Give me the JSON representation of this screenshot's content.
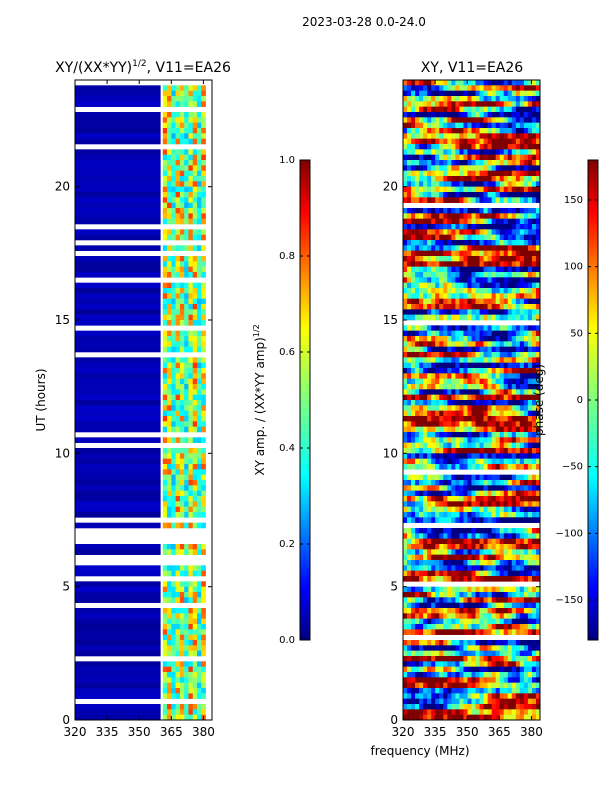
{
  "suptitle": "2023-03-28 0.0-24.0",
  "colors": {
    "jet": [
      "#00007f",
      "#0000ff",
      "#007fff",
      "#00ffff",
      "#7fff7f",
      "#ffff00",
      "#ff7f00",
      "#ff0000",
      "#7f0000"
    ]
  },
  "chart_data": [
    {
      "type": "heatmap",
      "title_main": "XY/(XX*YY)",
      "title_sup": "1/2",
      "title_rest": ", V11=EA26",
      "xlabel": "",
      "ylabel": "UT (hours)",
      "xlim": [
        320,
        384
      ],
      "ylim": [
        0,
        24
      ],
      "xticks": [
        {
          "v": 320,
          "label": "320"
        },
        {
          "v": 335,
          "label": "335"
        },
        {
          "v": 350,
          "label": "350"
        },
        {
          "v": 365,
          "label": "365"
        },
        {
          "v": 380,
          "label": "380"
        }
      ],
      "yticks": [
        {
          "v": 0,
          "label": "0"
        },
        {
          "v": 5,
          "label": "5"
        },
        {
          "v": 10,
          "label": "10"
        },
        {
          "v": 15,
          "label": "15"
        },
        {
          "v": 20,
          "label": "20"
        }
      ],
      "description_values": {
        "low_band_range_MHz": [
          320,
          360
        ],
        "low_band_typical_value": 0.05,
        "high_band_range_MHz": [
          361,
          381
        ],
        "high_band_typical_value": 0.55
      },
      "colorbar": {
        "label_main": "XY amp. / (XX*YY amp)",
        "label_sup": "1/2",
        "range": [
          0.0,
          1.0
        ],
        "ticks": [
          {
            "v": 0.0,
            "label": "0.0"
          },
          {
            "v": 0.2,
            "label": "0.2"
          },
          {
            "v": 0.4,
            "label": "0.4"
          },
          {
            "v": 0.6,
            "label": "0.6"
          },
          {
            "v": 0.8,
            "label": "0.8"
          },
          {
            "v": 1.0,
            "label": "1.0"
          }
        ]
      }
    },
    {
      "type": "heatmap",
      "title_main": "XY, V11=EA26",
      "title_sup": "",
      "title_rest": "",
      "xlabel": "frequency (MHz)",
      "ylabel": "",
      "xlim": [
        320,
        384
      ],
      "ylim": [
        0,
        24
      ],
      "xticks": [
        {
          "v": 320,
          "label": "320"
        },
        {
          "v": 335,
          "label": "335"
        },
        {
          "v": 350,
          "label": "350"
        },
        {
          "v": 365,
          "label": "365"
        },
        {
          "v": 380,
          "label": "380"
        }
      ],
      "yticks": [
        {
          "v": 0,
          "label": "0"
        },
        {
          "v": 5,
          "label": "5"
        },
        {
          "v": 10,
          "label": "10"
        },
        {
          "v": 15,
          "label": "15"
        },
        {
          "v": 20,
          "label": "20"
        }
      ],
      "description_values": {
        "value_range_deg": [
          -180,
          180
        ],
        "pattern": "noisy phase across all frequencies"
      },
      "colorbar": {
        "label_main": "phase (deg)",
        "label_sup": "",
        "range": [
          -180,
          180
        ],
        "ticks": [
          {
            "v": -150,
            "label": "−150"
          },
          {
            "v": -100,
            "label": "−100"
          },
          {
            "v": -50,
            "label": "−50"
          },
          {
            "v": 0,
            "label": "0"
          },
          {
            "v": 50,
            "label": "50"
          },
          {
            "v": 100,
            "label": "100"
          },
          {
            "v": 150,
            "label": "150"
          }
        ]
      }
    }
  ]
}
